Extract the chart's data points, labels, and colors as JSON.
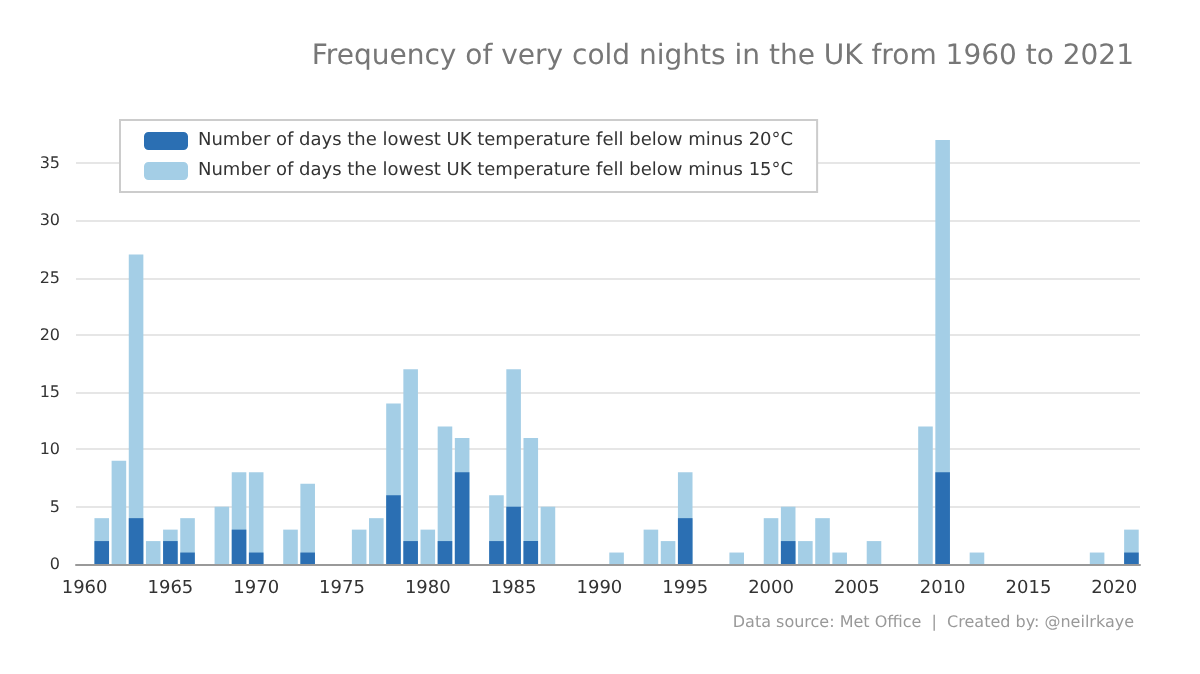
{
  "chart_data": {
    "type": "bar",
    "title": "Frequency of very cold nights in the UK from 1960 to 2021",
    "categories": [
      "1960",
      null,
      null,
      null,
      null,
      "1965",
      null,
      null,
      null,
      null,
      "1970",
      null,
      null,
      null,
      null,
      "1975",
      null,
      null,
      null,
      null,
      "1980",
      null,
      null,
      null,
      null,
      "1985",
      null,
      null,
      null,
      null,
      "1990",
      null,
      null,
      null,
      null,
      "1995",
      null,
      null,
      null,
      null,
      "2000",
      null,
      null,
      null,
      null,
      "2005",
      null,
      null,
      null,
      null,
      "2010",
      null,
      null,
      null,
      null,
      "2015",
      null,
      null,
      null,
      null,
      "2020",
      null
    ],
    "series": [
      {
        "name": "Number of days the lowest UK temperature fell below minus 20°C",
        "color": "#2b6fb3",
        "values": [
          0,
          2,
          0,
          4,
          0,
          2,
          1,
          0,
          0,
          3,
          1,
          0,
          0,
          1,
          0,
          0,
          0,
          0,
          6,
          2,
          0,
          2,
          8,
          0,
          2,
          5,
          2,
          0,
          0,
          0,
          0,
          0,
          0,
          0,
          0,
          4,
          0,
          0,
          0,
          0,
          0,
          2,
          0,
          0,
          0,
          0,
          0,
          0,
          0,
          0,
          8,
          0,
          0,
          0,
          0,
          0,
          0,
          0,
          0,
          0,
          0,
          1
        ]
      },
      {
        "name": "Number of days the lowest UK temperature fell below minus 15°C",
        "color": "#a4cee6",
        "values": [
          0,
          4,
          9,
          27,
          2,
          3,
          4,
          0,
          5,
          8,
          8,
          0,
          3,
          7,
          0,
          0,
          3,
          4,
          14,
          17,
          3,
          12,
          11,
          0,
          6,
          17,
          11,
          5,
          0,
          0,
          0,
          1,
          0,
          3,
          2,
          8,
          0,
          0,
          1,
          0,
          4,
          5,
          2,
          4,
          1,
          0,
          2,
          0,
          0,
          12,
          37,
          0,
          1,
          0,
          0,
          0,
          0,
          0,
          0,
          1,
          0,
          3
        ]
      }
    ],
    "ylim": [
      0,
      37
    ],
    "yticks": [
      0,
      5,
      10,
      15,
      20,
      25,
      30,
      35
    ],
    "grid": "y",
    "legend": "top left",
    "annotations": [
      "Data source: Met Office  |  Created by: @neilrkaye"
    ]
  }
}
